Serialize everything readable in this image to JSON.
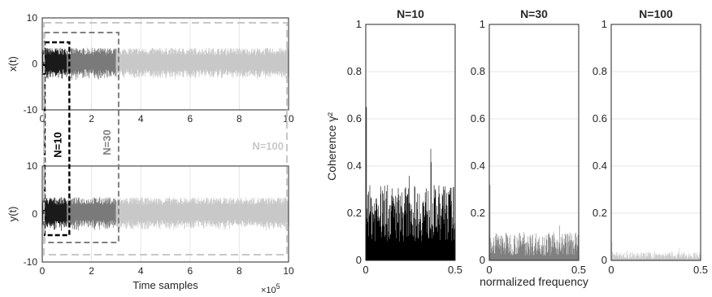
{
  "chart_data": [
    {
      "id": "xt",
      "type": "line",
      "ylabel": "x(t)",
      "xlim": [
        0,
        1000000
      ],
      "ylim": [
        -10,
        10
      ],
      "xticks": [
        "0",
        "2",
        "4",
        "6",
        "8",
        "10"
      ],
      "yticks": [
        "-10",
        "0",
        "10"
      ],
      "segments": [
        {
          "x0": 0,
          "x1": 100000,
          "amplitude": 3.5,
          "color": "#1a1a1a"
        },
        {
          "x0": 100000,
          "x1": 300000,
          "amplitude": 3.5,
          "color": "#7a7a7a"
        },
        {
          "x0": 300000,
          "x1": 1000000,
          "amplitude": 3.5,
          "color": "#c8c8c8"
        }
      ]
    },
    {
      "id": "yt",
      "type": "line",
      "ylabel": "y(t)",
      "xlabel": "Time samples",
      "xexponent": "×10",
      "xexponent_power": "5",
      "xlim": [
        0,
        1000000
      ],
      "ylim": [
        -10,
        10
      ],
      "xticks": [
        "0",
        "2",
        "4",
        "6",
        "8",
        "10"
      ],
      "yticks": [
        "-10",
        "0",
        "10"
      ],
      "segments": [
        {
          "x0": 0,
          "x1": 100000,
          "amplitude": 3.5,
          "color": "#1a1a1a"
        },
        {
          "x0": 100000,
          "x1": 300000,
          "amplitude": 3.5,
          "color": "#7a7a7a"
        },
        {
          "x0": 300000,
          "x1": 1000000,
          "amplitude": 3.5,
          "color": "#c8c8c8"
        }
      ]
    },
    {
      "id": "coh10",
      "type": "bar",
      "title": "N=10",
      "ylabel": "Coherence γ²",
      "xlim": [
        0,
        0.5
      ],
      "ylim": [
        0,
        1
      ],
      "xticks": [
        "0",
        "0.5"
      ],
      "yticks": [
        "0",
        "0.2",
        "0.4",
        "0.6",
        "0.8",
        "1"
      ],
      "spectrum": {
        "mean": 0.2,
        "spread": 0.12,
        "peak": 0.65,
        "color": "#000000"
      }
    },
    {
      "id": "coh30",
      "type": "bar",
      "title": "N=30",
      "xlabel": "normalized frequency",
      "xlim": [
        0,
        0.5
      ],
      "ylim": [
        0,
        1
      ],
      "xticks": [
        "0",
        "0.5"
      ],
      "yticks": [
        "0",
        "0.2",
        "0.4",
        "0.6",
        "0.8",
        "1"
      ],
      "spectrum": {
        "mean": 0.07,
        "spread": 0.05,
        "peak": 0.32,
        "color": "#808080"
      }
    },
    {
      "id": "coh100",
      "type": "bar",
      "title": "N=100",
      "xlim": [
        0,
        0.5
      ],
      "ylim": [
        0,
        1
      ],
      "xticks": [
        "0",
        "0.5"
      ],
      "yticks": [
        "0",
        "0.2",
        "0.4",
        "0.6",
        "0.8",
        "1"
      ],
      "spectrum": {
        "mean": 0.02,
        "spread": 0.015,
        "peak": 0.08,
        "color": "#c8c8c8"
      }
    }
  ],
  "windows": [
    {
      "label": "N=10",
      "x_end": 110000,
      "color": "#000000"
    },
    {
      "label": "N=30",
      "x_end": 310000,
      "color": "#808080"
    },
    {
      "label": "N=100",
      "x_end": 1000000,
      "color": "#c8c8c8"
    }
  ]
}
